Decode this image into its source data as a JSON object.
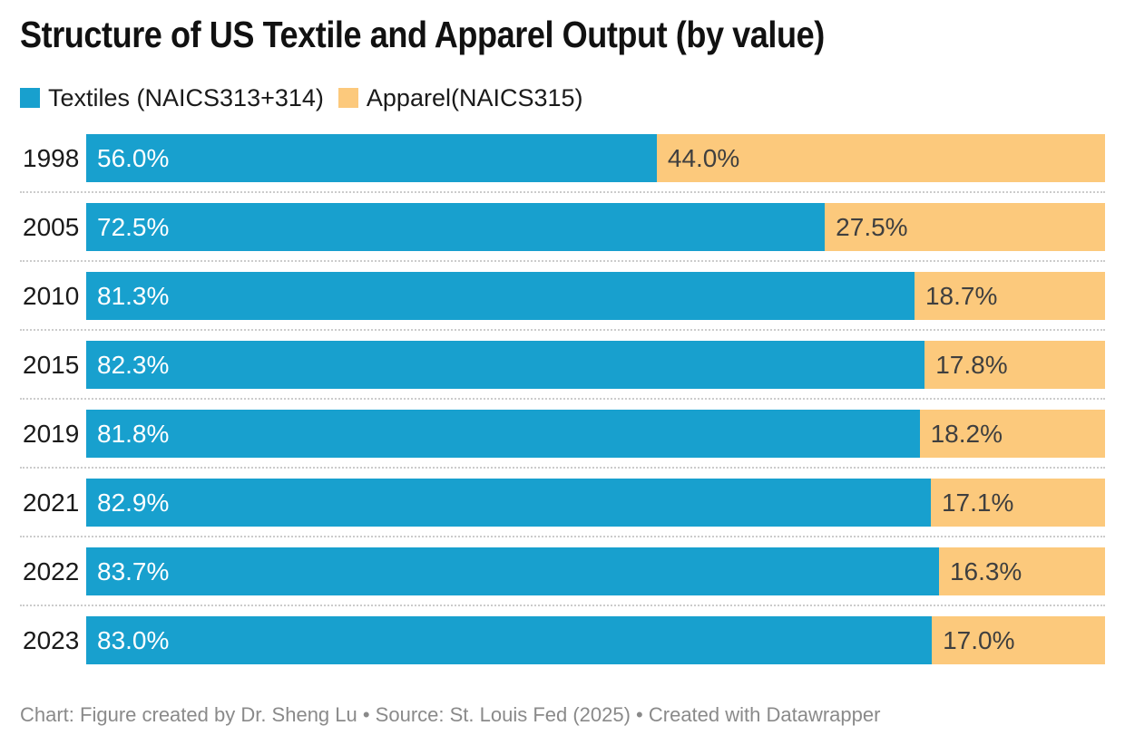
{
  "header": {
    "title": "Structure of US Textile and Apparel Output (by value)"
  },
  "chart_data": {
    "type": "bar",
    "stacked": true,
    "orientation": "horizontal",
    "unit": "%",
    "title": "Structure of US Textile and Apparel Output (by value)",
    "categories": [
      "1998",
      "2005",
      "2010",
      "2015",
      "2019",
      "2021",
      "2022",
      "2023"
    ],
    "series": [
      {
        "name": "Textiles (NAICS313+314)",
        "color": "#18a0ce",
        "values": [
          56.0,
          72.5,
          81.3,
          82.3,
          81.8,
          82.9,
          83.7,
          83.0
        ],
        "labels": [
          "56.0%",
          "72.5%",
          "81.3%",
          "82.3%",
          "81.8%",
          "82.9%",
          "83.7%",
          "83.0%"
        ]
      },
      {
        "name": "Apparel(NAICS315)",
        "color": "#fcc97c",
        "values": [
          44.0,
          27.5,
          18.7,
          17.8,
          18.2,
          17.1,
          16.3,
          17.0
        ],
        "labels": [
          "44.0%",
          "27.5%",
          "18.7%",
          "17.8%",
          "18.2%",
          "17.1%",
          "16.3%",
          "17.0%"
        ]
      }
    ],
    "xlim": [
      0,
      100
    ],
    "grid": false,
    "legend_position": "top-left",
    "value_labels": "inside-start",
    "row_separator": "dotted"
  },
  "footer": {
    "text": "Chart: Figure created by Dr. Sheng Lu • Source: St. Louis Fed (2025) • Created with Datawrapper"
  }
}
